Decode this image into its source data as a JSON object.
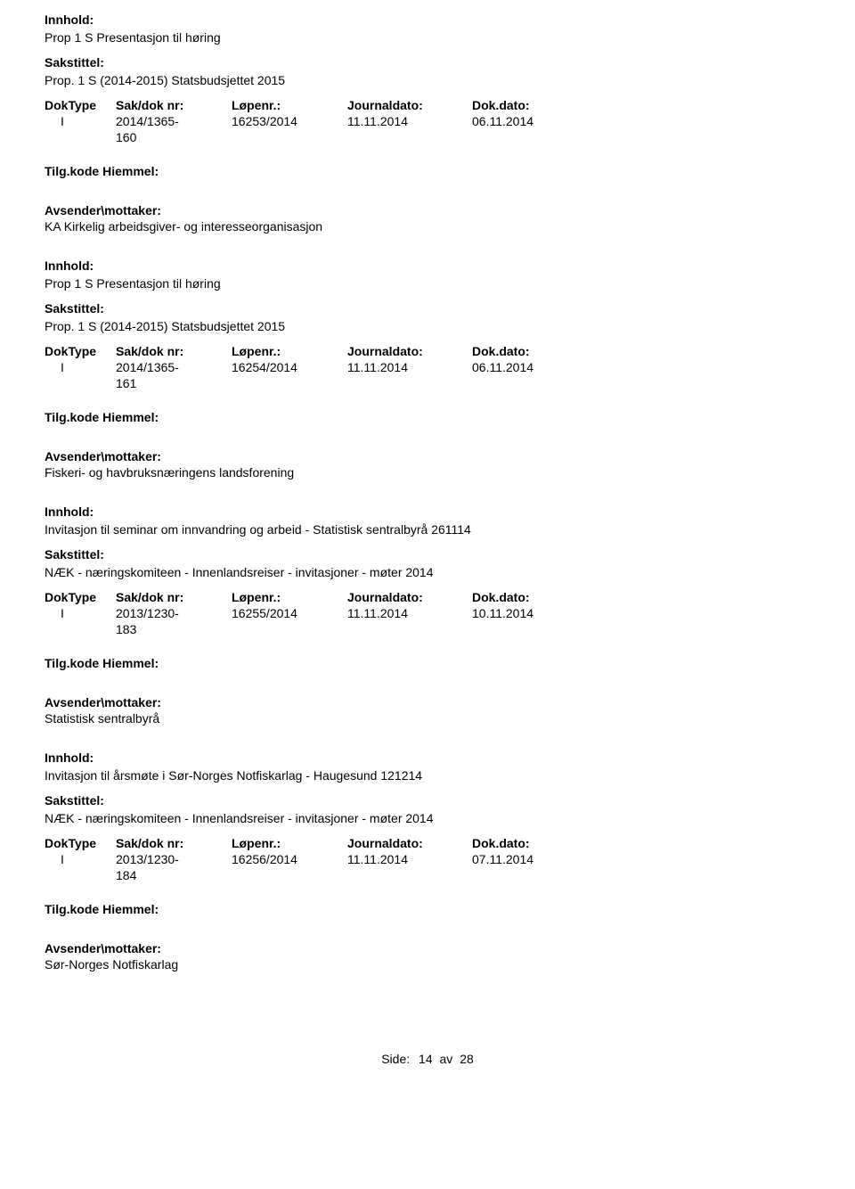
{
  "labels": {
    "innhold": "Innhold:",
    "sakstittel": "Sakstittel:",
    "doktype": "DokType",
    "saknr": "Sak/dok nr:",
    "lopenr": "Løpenr.:",
    "journaldato": "Journaldato:",
    "dokdato": "Dok.dato:",
    "tilgkode": "Tilg.kode",
    "hiemmel": "Hiemmel:",
    "avsender": "Avsender\\mottaker:",
    "side": "Side:",
    "av": "av"
  },
  "entries": [
    {
      "innhold": "Prop 1 S Presentasjon til høring",
      "sakstittel": "Prop. 1 S (2014-2015) Statsbudsjettet 2015",
      "doktype": "I",
      "saknr1": "2014/1365-",
      "saknr2": "160",
      "lopenr": "16253/2014",
      "journaldato": "11.11.2014",
      "dokdato": "06.11.2014",
      "avsender": "KA Kirkelig arbeidsgiver- og interesseorganisasjon"
    },
    {
      "innhold": "Prop 1 S Presentasjon til høring",
      "sakstittel": "Prop. 1 S (2014-2015) Statsbudsjettet 2015",
      "doktype": "I",
      "saknr1": "2014/1365-",
      "saknr2": "161",
      "lopenr": "16254/2014",
      "journaldato": "11.11.2014",
      "dokdato": "06.11.2014",
      "avsender": "Fiskeri- og havbruksnæringens landsforening"
    },
    {
      "innhold": "Invitasjon til seminar om innvandring og arbeid - Statistisk sentralbyrå 261114",
      "sakstittel": "NÆK - næringskomiteen - Innenlandsreiser - invitasjoner - møter 2014",
      "doktype": "I",
      "saknr1": "2013/1230-",
      "saknr2": "183",
      "lopenr": "16255/2014",
      "journaldato": "11.11.2014",
      "dokdato": "10.11.2014",
      "avsender": "Statistisk sentralbyrå"
    },
    {
      "innhold": "Invitasjon til årsmøte i Sør-Norges Notfiskarlag - Haugesund 121214",
      "sakstittel": "NÆK - næringskomiteen - Innenlandsreiser - invitasjoner - møter 2014",
      "doktype": "I",
      "saknr1": "2013/1230-",
      "saknr2": "184",
      "lopenr": "16256/2014",
      "journaldato": "11.11.2014",
      "dokdato": "07.11.2014",
      "avsender": "Sør-Norges Notfiskarlag"
    }
  ],
  "footer": {
    "page": "14",
    "total": "28"
  }
}
